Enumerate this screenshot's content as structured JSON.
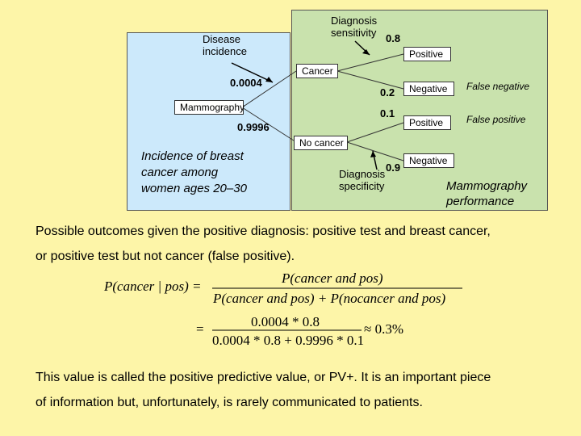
{
  "tree": {
    "disease_incidence_label": [
      "Disease",
      "incidence"
    ],
    "sensitivity_label": [
      "Diagnosis",
      "sensitivity"
    ],
    "sensitivity_value": "0.8",
    "specificity_label": [
      "Diagnosis",
      "specificity"
    ],
    "specificity_value": "0.9",
    "incidence_value": "0.0004",
    "no_incidence_value": "0.9996",
    "root_label": "Mammography",
    "cancer_label": "Cancer",
    "no_cancer_label": "No cancer",
    "cancer_positive": "Positive",
    "cancer_negative": "Negative",
    "cancer_negative_prob": "0.2",
    "nocancer_positive": "Positive",
    "nocancer_positive_prob": "0.1",
    "nocancer_negative": "Negative",
    "false_negative_label": "False negative",
    "false_positive_label": "False positive",
    "incidence_caption": [
      "Incidence of breast",
      "cancer among",
      "women ages 20–30"
    ],
    "performance_caption": [
      "Mammography",
      "performance"
    ]
  },
  "text": {
    "outcomes_line1": "Possible outcomes given the positive diagnosis: positive test and breast cancer,",
    "outcomes_line2": "or positive test but not cancer (false positive).",
    "ppv_line1": "This value is called the positive predictive value, or PV+. It is an important piece",
    "ppv_line2": "of information but, unfortunately, is rarely communicated to patients."
  },
  "formula": {
    "lhs": "P(cancer | pos) =",
    "numerator1": "P(cancer and pos)",
    "denominator1": "P(cancer and pos) + P(nocancer and pos)",
    "equals": "=",
    "numerator2": "0.0004 * 0.8",
    "denominator2": "0.0004 * 0.8 + 0.9996 * 0.1",
    "result": "≈ 0.3%"
  }
}
